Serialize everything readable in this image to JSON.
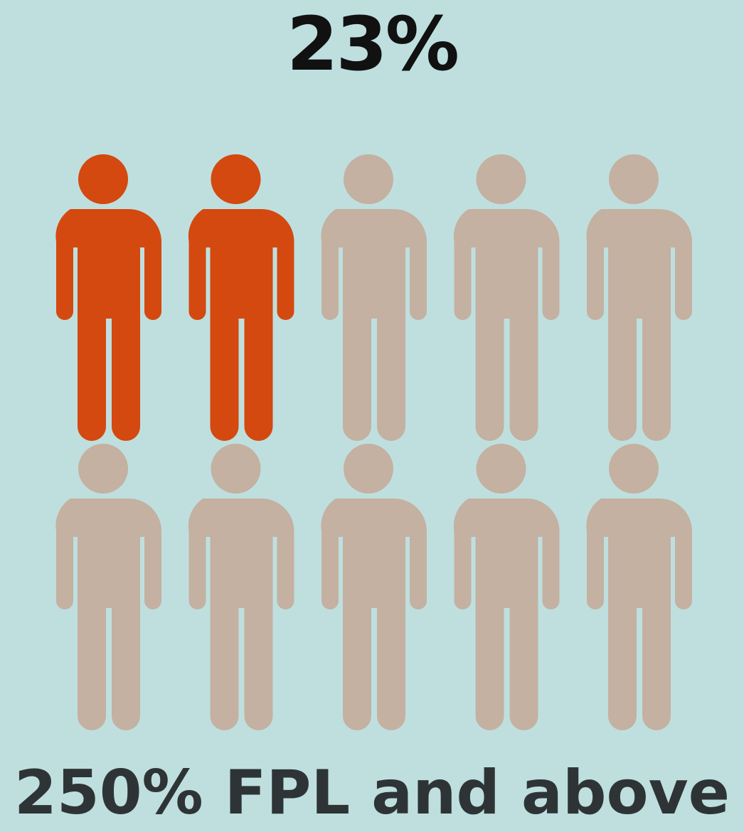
{
  "headline": "23%",
  "caption": "250% FPL and above",
  "chart_data": {
    "type": "pictogram",
    "value_percent": 23,
    "total_icons": 10,
    "highlighted_icons": 2,
    "rows": 2,
    "columns": 5,
    "title": "23%",
    "xlabel": "250% FPL and above",
    "colors": {
      "highlight": "#d4490f",
      "base": "#c4b1a1",
      "background": "#bfdfdf"
    }
  }
}
